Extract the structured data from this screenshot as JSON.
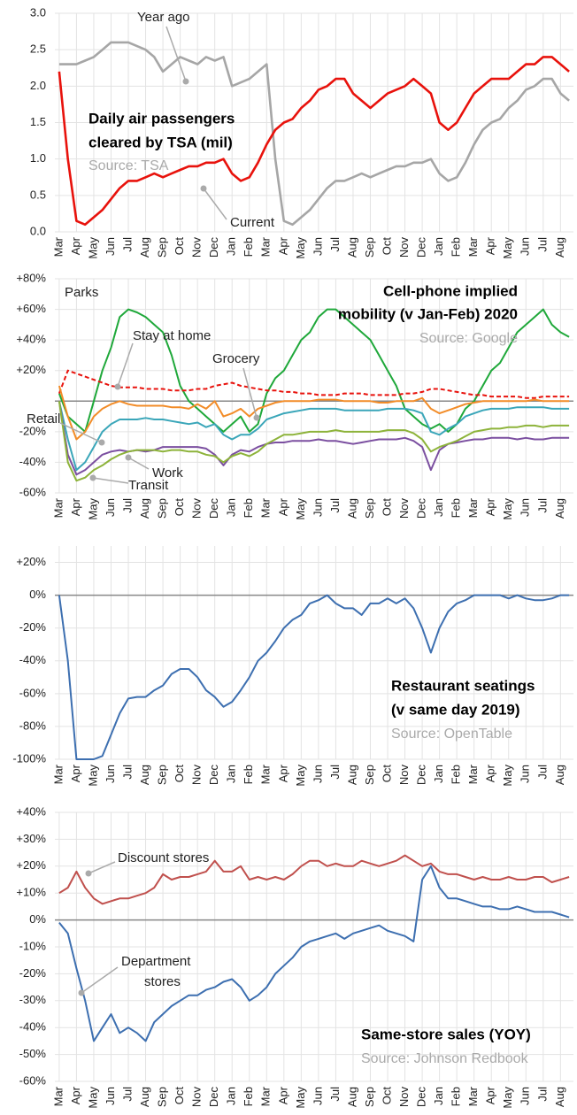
{
  "chart_data": [
    {
      "type": "line",
      "title": [
        "Daily air passengers",
        "cleared by TSA (mil)"
      ],
      "source": "Source: TSA",
      "categories": [
        "Mar",
        null,
        "Apr",
        null,
        "May",
        null,
        "Jun",
        null,
        "Jul",
        null,
        "Aug",
        null,
        "Sep",
        null,
        "Oct",
        null,
        "Nov",
        null,
        "Dec",
        null,
        "Jan",
        null,
        "Feb",
        null,
        "Mar",
        null,
        "Apr",
        null,
        "May",
        null,
        "Jun",
        null,
        "Jul",
        null,
        "Aug",
        null,
        "Sep",
        null,
        "Oct",
        null,
        "Nov",
        null,
        "Dec",
        null,
        "Jan",
        null,
        "Feb",
        null,
        "Mar",
        null,
        "Apr",
        null,
        "May",
        null,
        "Jun",
        null,
        "Jul",
        null,
        "Aug",
        null
      ],
      "series": [
        {
          "name": "Year ago",
          "color": "#a6a6a6",
          "values": [
            2.3,
            2.3,
            2.3,
            2.35,
            2.4,
            2.5,
            2.6,
            2.6,
            2.6,
            2.55,
            2.5,
            2.4,
            2.2,
            2.3,
            2.4,
            2.35,
            2.3,
            2.4,
            2.35,
            2.4,
            2.0,
            2.05,
            2.1,
            2.2,
            2.3,
            1.0,
            0.15,
            0.1,
            0.2,
            0.3,
            0.45,
            0.6,
            0.7,
            0.7,
            0.75,
            0.8,
            0.75,
            0.8,
            0.85,
            0.9,
            0.9,
            0.95,
            0.95,
            1.0,
            0.8,
            0.7,
            0.75,
            0.95,
            1.2,
            1.4,
            1.5,
            1.55,
            1.7,
            1.8,
            1.95,
            2.0,
            2.1,
            2.1,
            1.9,
            1.8
          ]
        },
        {
          "name": "Current",
          "color": "#e8120c",
          "values": [
            2.2,
            1.0,
            0.15,
            0.1,
            0.2,
            0.3,
            0.45,
            0.6,
            0.7,
            0.7,
            0.75,
            0.8,
            0.75,
            0.8,
            0.85,
            0.9,
            0.9,
            0.95,
            0.95,
            1.0,
            0.8,
            0.7,
            0.75,
            0.95,
            1.2,
            1.4,
            1.5,
            1.55,
            1.7,
            1.8,
            1.95,
            2.0,
            2.1,
            2.1,
            1.9,
            1.8,
            1.7,
            1.8,
            1.9,
            1.95,
            2.0,
            2.1,
            2.0,
            1.9,
            1.5,
            1.4,
            1.5,
            1.7,
            1.9,
            2.0,
            2.1,
            2.1,
            2.1,
            2.2,
            2.3,
            2.3,
            2.4,
            2.4,
            2.3,
            2.2
          ]
        }
      ],
      "ylim": [
        0,
        3
      ],
      "yticks": [
        {
          "value": 0,
          "label": "0.0"
        },
        0.5,
        {
          "value": 1,
          "label": "1.0"
        },
        1.5,
        {
          "value": 2,
          "label": "2.0"
        },
        2.5,
        {
          "value": 3,
          "label": "3.0"
        }
      ],
      "grid": true,
      "zero_line": false
    },
    {
      "type": "line",
      "title": [
        "Cell-phone implied",
        "mobility (v Jan-Feb) 2020"
      ],
      "source": "Source: Google",
      "categories": [
        "Mar",
        null,
        "Apr",
        null,
        "May",
        null,
        "Jun",
        null,
        "Jul",
        null,
        "Aug",
        null,
        "Sep",
        null,
        "Oct",
        null,
        "Nov",
        null,
        "Dec",
        null,
        "Jan",
        null,
        "Feb",
        null,
        "Mar",
        null,
        "Apr",
        null,
        "May",
        null,
        "Jun",
        null,
        "Jul",
        null,
        "Aug",
        null,
        "Sep",
        null,
        "Oct",
        null,
        "Nov",
        null,
        "Dec",
        null,
        "Jan",
        null,
        "Feb",
        null,
        "Mar",
        null,
        "Apr",
        null,
        "May",
        null,
        "Jun",
        null,
        "Jul",
        null,
        "Aug",
        null
      ],
      "series": [
        {
          "name": "Parks",
          "color": "#1fa83a",
          "values": [
            5,
            -10,
            -15,
            -20,
            0,
            20,
            35,
            55,
            60,
            58,
            55,
            50,
            45,
            30,
            10,
            0,
            -5,
            -10,
            -15,
            -20,
            -15,
            -10,
            -20,
            -15,
            5,
            15,
            20,
            30,
            40,
            45,
            55,
            60,
            60,
            55,
            50,
            45,
            40,
            30,
            20,
            10,
            -5,
            -10,
            -15,
            -18,
            -15,
            -20,
            -15,
            -5,
            0,
            10,
            20,
            25,
            35,
            45,
            50,
            55,
            60,
            50,
            45,
            42
          ]
        },
        {
          "name": "Stay at home",
          "color": "#e8120c",
          "dash": true,
          "values": [
            5,
            20,
            18,
            16,
            14,
            12,
            10,
            9,
            9,
            9,
            8,
            8,
            8,
            7,
            7,
            7,
            8,
            8,
            10,
            11,
            12,
            10,
            9,
            8,
            7,
            7,
            6,
            6,
            5,
            5,
            4,
            4,
            4,
            5,
            5,
            5,
            4,
            4,
            4,
            4,
            5,
            5,
            6,
            8,
            8,
            7,
            6,
            5,
            4,
            4,
            3,
            3,
            3,
            3,
            2,
            2,
            3,
            3,
            3,
            3
          ]
        },
        {
          "name": "Grocery",
          "color": "#f28c28",
          "values": [
            10,
            -10,
            -25,
            -20,
            -10,
            -5,
            -2,
            0,
            -2,
            -3,
            -3,
            -3,
            -3,
            -4,
            -4,
            -5,
            -2,
            -5,
            0,
            -10,
            -8,
            -5,
            -10,
            -5,
            -3,
            -1,
            0,
            0,
            0,
            0,
            1,
            1,
            1,
            0,
            0,
            0,
            0,
            -1,
            -1,
            0,
            0,
            0,
            2,
            -5,
            -8,
            -6,
            -4,
            -2,
            -1,
            0,
            0,
            0,
            0,
            0,
            0,
            1,
            0,
            0,
            0,
            0
          ]
        },
        {
          "name": "Retail",
          "color": "#3aa6b9",
          "values": [
            0,
            -25,
            -45,
            -40,
            -30,
            -20,
            -15,
            -12,
            -12,
            -12,
            -11,
            -12,
            -12,
            -13,
            -14,
            -15,
            -14,
            -17,
            -15,
            -22,
            -25,
            -22,
            -22,
            -18,
            -12,
            -10,
            -8,
            -7,
            -6,
            -5,
            -5,
            -5,
            -5,
            -6,
            -6,
            -6,
            -6,
            -6,
            -5,
            -5,
            -5,
            -6,
            -8,
            -20,
            -22,
            -18,
            -15,
            -10,
            -8,
            -6,
            -5,
            -5,
            -5,
            -4,
            -4,
            -4,
            -4,
            -5,
            -5,
            -5
          ]
        },
        {
          "name": "Work",
          "color": "#7b4fa0",
          "values": [
            0,
            -35,
            -48,
            -45,
            -40,
            -35,
            -33,
            -32,
            -33,
            -32,
            -33,
            -32,
            -30,
            -30,
            -30,
            -30,
            -30,
            -31,
            -35,
            -42,
            -35,
            -32,
            -33,
            -30,
            -28,
            -27,
            -27,
            -26,
            -26,
            -26,
            -25,
            -26,
            -26,
            -27,
            -28,
            -27,
            -26,
            -25,
            -25,
            -25,
            -24,
            -26,
            -30,
            -45,
            -32,
            -28,
            -27,
            -26,
            -25,
            -25,
            -24,
            -24,
            -24,
            -25,
            -24,
            -25,
            -25,
            -24,
            -24,
            -24
          ]
        },
        {
          "name": "Transit",
          "color": "#8db33a",
          "values": [
            0,
            -40,
            -52,
            -50,
            -45,
            -42,
            -38,
            -35,
            -33,
            -32,
            -32,
            -32,
            -33,
            -32,
            -32,
            -33,
            -33,
            -35,
            -36,
            -40,
            -36,
            -34,
            -36,
            -33,
            -28,
            -25,
            -22,
            -22,
            -21,
            -20,
            -20,
            -20,
            -19,
            -20,
            -20,
            -20,
            -20,
            -20,
            -19,
            -19,
            -19,
            -21,
            -25,
            -33,
            -30,
            -28,
            -26,
            -23,
            -20,
            -19,
            -18,
            -18,
            -17,
            -17,
            -16,
            -16,
            -17,
            -16,
            -16,
            -16
          ]
        }
      ],
      "ylim": [
        -60,
        80
      ],
      "yticks": [
        {
          "value": -60,
          "label": "-60%"
        },
        {
          "value": -40,
          "label": "-40%"
        },
        {
          "value": -20,
          "label": "-20%"
        },
        {
          "value": 20,
          "label": "+20%"
        },
        {
          "value": 40,
          "label": "+40%"
        },
        {
          "value": 60,
          "label": "+60%"
        },
        {
          "value": 80,
          "label": "+80%"
        }
      ],
      "grid": true,
      "zero_line": true
    },
    {
      "type": "line",
      "title": [
        "Restaurant seatings",
        "(v same day 2019)"
      ],
      "source": "Source: OpenTable",
      "categories": [
        "Mar",
        null,
        "Apr",
        null,
        "May",
        null,
        "Jun",
        null,
        "Jul",
        null,
        "Aug",
        null,
        "Sep",
        null,
        "Oct",
        null,
        "Nov",
        null,
        "Dec",
        null,
        "Jan",
        null,
        "Feb",
        null,
        "Mar",
        null,
        "Apr",
        null,
        "May",
        null,
        "Jun",
        null,
        "Jul",
        null,
        "Aug",
        null,
        "Sep",
        null,
        "Oct",
        null,
        "Nov",
        null,
        "Dec",
        null,
        "Jan",
        null,
        "Feb",
        null,
        "Mar",
        null,
        "Apr",
        null,
        "May",
        null,
        "Jun",
        null,
        "Jul",
        null,
        "Aug",
        null
      ],
      "series": [
        {
          "name": "Restaurant seatings",
          "color": "#3d6fb0",
          "values": [
            0,
            -40,
            -100,
            -100,
            -100,
            -98,
            -85,
            -72,
            -63,
            -62,
            -62,
            -58,
            -55,
            -48,
            -45,
            -45,
            -50,
            -58,
            -62,
            -68,
            -65,
            -58,
            -50,
            -40,
            -35,
            -28,
            -20,
            -15,
            -12,
            -5,
            -3,
            0,
            -5,
            -8,
            -8,
            -12,
            -5,
            -5,
            -2,
            -5,
            -2,
            -8,
            -20,
            -35,
            -20,
            -10,
            -5,
            -3,
            0,
            0,
            0,
            0,
            -2,
            0,
            -2,
            -3,
            -3,
            -2,
            0,
            0
          ]
        }
      ],
      "ylim": [
        -100,
        30
      ],
      "yticks": [
        {
          "value": -100,
          "label": "-100%"
        },
        {
          "value": -80,
          "label": "-80%"
        },
        {
          "value": -60,
          "label": "-60%"
        },
        {
          "value": -40,
          "label": "-40%"
        },
        {
          "value": -20,
          "label": "-20%"
        },
        {
          "value": 0,
          "label": "0%"
        },
        {
          "value": 20,
          "label": "+20%"
        }
      ],
      "grid": true,
      "zero_line": true
    },
    {
      "type": "line",
      "title": [
        "Same-store sales (YOY)"
      ],
      "source": "Source: Johnson Redbook",
      "categories": [
        "Mar",
        null,
        "Apr",
        null,
        "May",
        null,
        "Jun",
        null,
        "Jul",
        null,
        "Aug",
        null,
        "Sep",
        null,
        "Oct",
        null,
        "Nov",
        null,
        "Dec",
        null,
        "Jan",
        null,
        "Feb",
        null,
        "Mar",
        null,
        "Apr",
        null,
        "May",
        null,
        "Jun",
        null,
        "Jul",
        null,
        "Aug",
        null,
        "Sep",
        null,
        "Oct",
        null,
        "Nov",
        null,
        "Dec",
        null,
        "Jan",
        null,
        "Feb",
        null,
        "Mar",
        null,
        "Apr",
        null,
        "May",
        null,
        "Jun",
        null,
        "Jul",
        null,
        "Aug",
        null
      ],
      "series": [
        {
          "name": "Discount stores",
          "color": "#c0504d",
          "values": [
            10,
            12,
            18,
            12,
            8,
            6,
            7,
            8,
            8,
            9,
            10,
            12,
            17,
            15,
            16,
            16,
            17,
            18,
            22,
            18,
            18,
            20,
            15,
            16,
            15,
            16,
            15,
            17,
            20,
            22,
            22,
            20,
            21,
            20,
            20,
            22,
            21,
            20,
            21,
            22,
            24,
            22,
            20,
            21,
            18,
            17,
            17,
            16,
            15,
            16,
            15,
            15,
            16,
            15,
            15,
            16,
            16,
            14,
            15,
            16
          ]
        },
        {
          "name": "Department stores",
          "color": "#3d6fb0",
          "values": [
            -1,
            -5,
            -18,
            -30,
            -45,
            -40,
            -35,
            -42,
            -40,
            -42,
            -45,
            -38,
            -35,
            -32,
            -30,
            -28,
            -28,
            -26,
            -25,
            -23,
            -22,
            -25,
            -30,
            -28,
            -25,
            -20,
            -17,
            -14,
            -10,
            -8,
            -7,
            -6,
            -5,
            -7,
            -5,
            -4,
            -3,
            -2,
            -4,
            -5,
            -6,
            -8,
            15,
            20,
            12,
            8,
            8,
            7,
            6,
            5,
            5,
            4,
            4,
            5,
            4,
            3,
            3,
            3,
            2,
            1
          ]
        }
      ],
      "annotations": [
        [
          "Discount stores"
        ],
        [
          "Department",
          "stores"
        ]
      ],
      "ylim": [
        -60,
        40
      ],
      "yticks": [
        {
          "value": -60,
          "label": "-60%"
        },
        {
          "value": -50,
          "label": "-50%"
        },
        {
          "value": -40,
          "label": "-40%"
        },
        {
          "value": -30,
          "label": "-30%"
        },
        {
          "value": -20,
          "label": "-20%"
        },
        {
          "value": -10,
          "label": "-10%"
        },
        {
          "value": 0,
          "label": "0%"
        },
        {
          "value": 10,
          "label": "+10%"
        },
        {
          "value": 20,
          "label": "+20%"
        },
        {
          "value": 30,
          "label": "+30%"
        },
        {
          "value": 40,
          "label": "+40%"
        }
      ],
      "grid": true,
      "zero_line": true
    }
  ]
}
